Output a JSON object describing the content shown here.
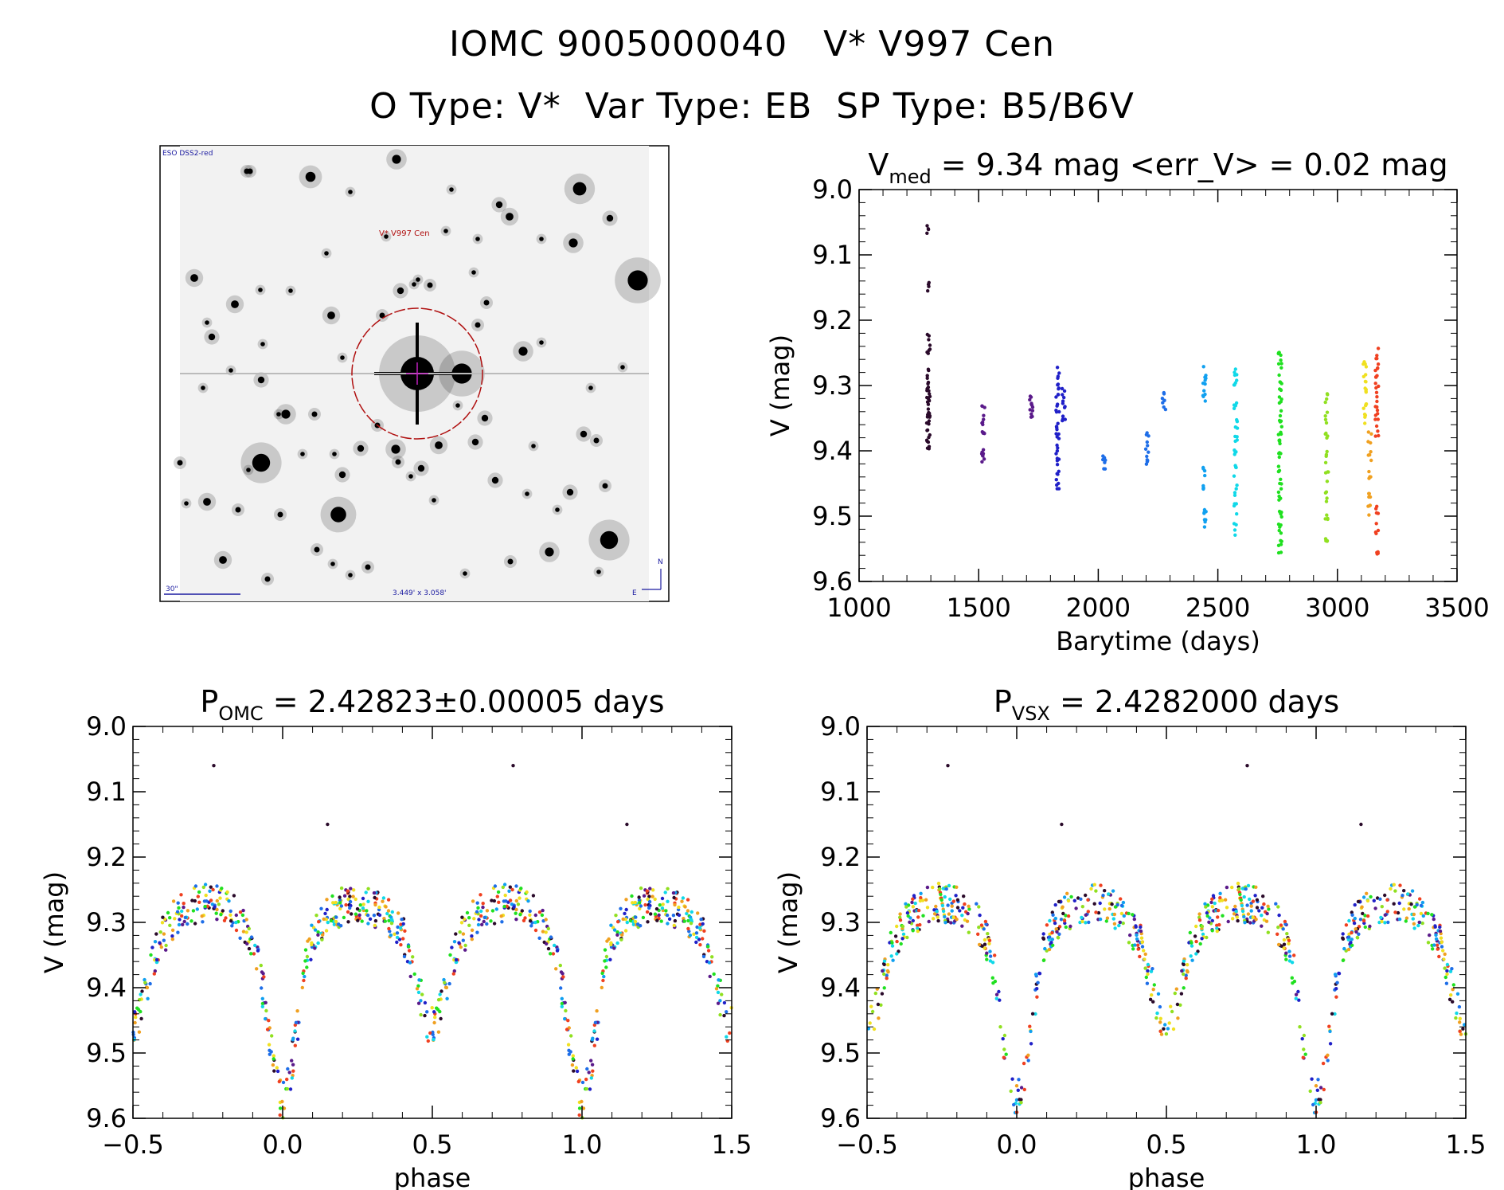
{
  "header": {
    "title": "IOMC 9005000040   V* V997 Cen",
    "subtitle": "O Type: V*  Var Type: EB  SP Type: B5/B6V"
  },
  "finder": {
    "survey_label": "ESO DSS2-red",
    "target_label": "V* V997 Cen",
    "scale_label": "30\"",
    "fov_label": "3.449' x 3.058'",
    "north_label": "N",
    "east_label": "E"
  },
  "colors": {
    "time_palette": [
      "#2a0a2a",
      "#5a1a8a",
      "#2020c8",
      "#1e6ee8",
      "#10a0f0",
      "#10d8e8",
      "#20e020",
      "#90e020",
      "#f0e020",
      "#f0a020",
      "#f04020"
    ],
    "circle": "#b01010",
    "label_blue": "#1a1aa0"
  },
  "chart_data": [
    {
      "type": "scatter",
      "panel": "time-series",
      "title_main": "V",
      "title_sub": "med",
      "title_rest": " = 9.34 mag <err_V> = 0.02 mag",
      "xlabel": "Barytime (days)",
      "ylabel": "V (mag)",
      "xlim": [
        1000,
        3500
      ],
      "ylim": [
        9.6,
        9.0
      ],
      "xticks": [
        "1000",
        "1500",
        "2000",
        "2500",
        "3000",
        "3500"
      ],
      "yticks": [
        "9.0",
        "9.1",
        "9.2",
        "9.3",
        "9.4",
        "9.5",
        "9.6"
      ],
      "groups": [
        {
          "x": 1290,
          "y": [
            9.06,
            9.15,
            9.23,
            9.25,
            9.28,
            9.3,
            9.31,
            9.32,
            9.33,
            9.34,
            9.35,
            9.36,
            9.38,
            9.39
          ],
          "c": 0
        },
        {
          "x": 1520,
          "y": [
            9.34,
            9.36,
            9.38,
            9.4,
            9.41
          ],
          "c": 1
        },
        {
          "x": 1720,
          "y": [
            9.32,
            9.33,
            9.34
          ],
          "c": 1
        },
        {
          "x": 1830,
          "y": [
            9.28,
            9.3,
            9.32,
            9.34,
            9.36,
            9.38,
            9.4,
            9.42,
            9.44,
            9.45
          ],
          "c": 2
        },
        {
          "x": 1855,
          "y": [
            9.31,
            9.33,
            9.35
          ],
          "c": 2
        },
        {
          "x": 2025,
          "y": [
            9.41,
            9.42
          ],
          "c": 3
        },
        {
          "x": 2205,
          "y": [
            9.38,
            9.4,
            9.42
          ],
          "c": 3
        },
        {
          "x": 2275,
          "y": [
            9.32,
            9.33
          ],
          "c": 3
        },
        {
          "x": 2445,
          "y": [
            9.28,
            9.3,
            9.32,
            9.43,
            9.46,
            9.49,
            9.51
          ],
          "c": 4
        },
        {
          "x": 2575,
          "y": [
            9.28,
            9.3,
            9.33,
            9.36,
            9.38,
            9.4,
            9.43,
            9.46,
            9.49,
            9.52
          ],
          "c": 5
        },
        {
          "x": 2760,
          "y": [
            9.25,
            9.27,
            9.29,
            9.31,
            9.33,
            9.35,
            9.37,
            9.39,
            9.41,
            9.43,
            9.45,
            9.47,
            9.49,
            9.51,
            9.53,
            9.55
          ],
          "c": 6
        },
        {
          "x": 2955,
          "y": [
            9.32,
            9.35,
            9.38,
            9.41,
            9.44,
            9.47,
            9.5,
            9.53
          ],
          "c": 7
        },
        {
          "x": 3115,
          "y": [
            9.27,
            9.29,
            9.31,
            9.33,
            9.35
          ],
          "c": 8
        },
        {
          "x": 3135,
          "y": [
            9.38,
            9.41,
            9.44,
            9.47,
            9.49
          ],
          "c": 9
        },
        {
          "x": 3165,
          "y": [
            9.25,
            9.27,
            9.29,
            9.31,
            9.33,
            9.35,
            9.37,
            9.49,
            9.52,
            9.55
          ],
          "c": 10
        }
      ]
    },
    {
      "type": "scatter",
      "panel": "phase-omc",
      "title_main": "P",
      "title_sub": "OMC",
      "title_rest": " = 2.42823±0.00005 days",
      "xlabel": "phase",
      "ylabel": "V (mag)",
      "xlim": [
        -0.5,
        1.5
      ],
      "ylim": [
        9.6,
        9.0
      ],
      "xticks": [
        "−0.5",
        "0.0",
        "0.5",
        "1.0",
        "1.5"
      ],
      "yticks": [
        "9.0",
        "9.1",
        "9.2",
        "9.3",
        "9.4",
        "9.5",
        "9.6"
      ]
    },
    {
      "type": "scatter",
      "panel": "phase-vsx",
      "title_main": "P",
      "title_sub": "VSX",
      "title_rest": " = 2.4282000 days",
      "xlabel": "phase",
      "ylabel": "V (mag)",
      "xlim": [
        -0.5,
        1.5
      ],
      "ylim": [
        9.6,
        9.0
      ],
      "xticks": [
        "−0.5",
        "0.0",
        "0.5",
        "1.0",
        "1.5"
      ],
      "yticks": [
        "9.0",
        "9.1",
        "9.2",
        "9.3",
        "9.4",
        "9.5",
        "9.6"
      ]
    }
  ]
}
